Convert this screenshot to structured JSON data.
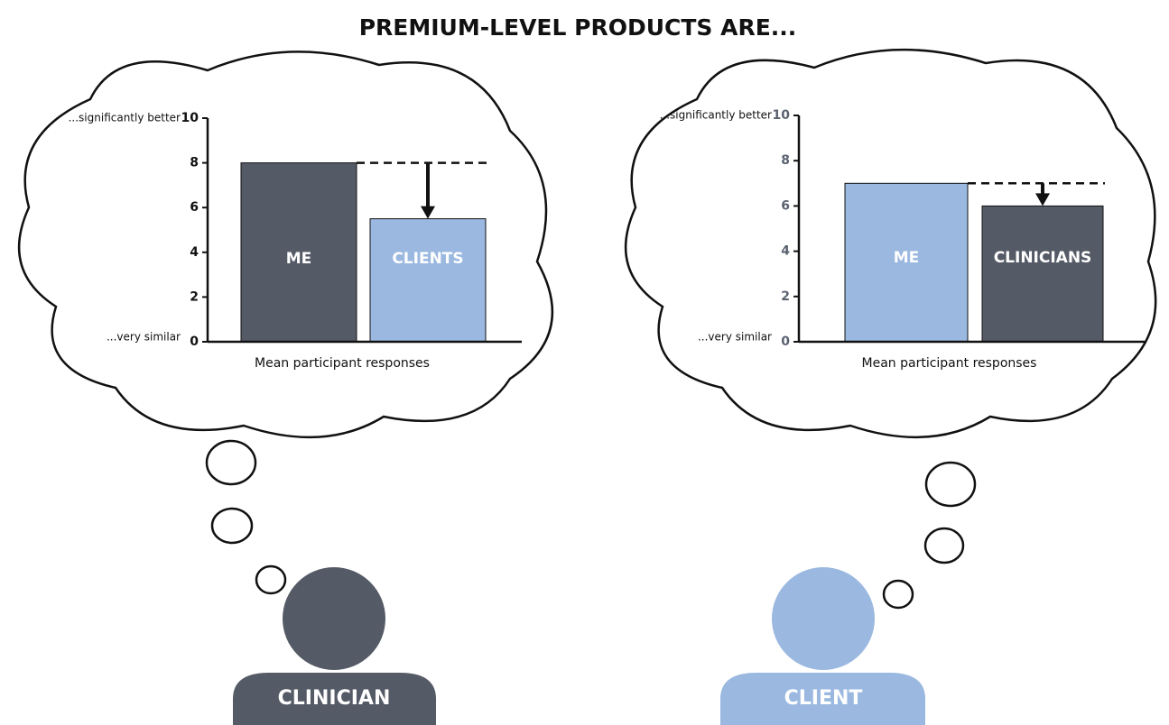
{
  "title": "PREMIUM-LEVEL PRODUCTS ARE...",
  "people": [
    {
      "label": "CLINICIAN",
      "color": "#555b66"
    },
    {
      "label": "CLIENT",
      "color": "#9ab8e0"
    }
  ],
  "chart_data": [
    {
      "type": "bar",
      "categories": [
        "ME",
        "CLIENTS"
      ],
      "values": [
        8,
        5.5
      ],
      "colors": [
        "#555b66",
        "#9ab8e0"
      ],
      "xlabel": "Mean participant responses",
      "top_label": "...significantly better",
      "bottom_label": "...very similar",
      "ylim": [
        0,
        10
      ],
      "yticks": [
        0,
        2,
        4,
        6,
        8,
        10
      ],
      "tick_label_color": "#111111"
    },
    {
      "type": "bar",
      "categories": [
        "ME",
        "CLINICIANS"
      ],
      "values": [
        7,
        6
      ],
      "colors": [
        "#9ab8e0",
        "#555b66"
      ],
      "xlabel": "Mean participant responses",
      "top_label": "...significantly better",
      "bottom_label": "...very similar",
      "ylim": [
        0,
        10
      ],
      "yticks": [
        0,
        2,
        4,
        6,
        8,
        10
      ],
      "tick_label_color": "#5a6270"
    }
  ]
}
